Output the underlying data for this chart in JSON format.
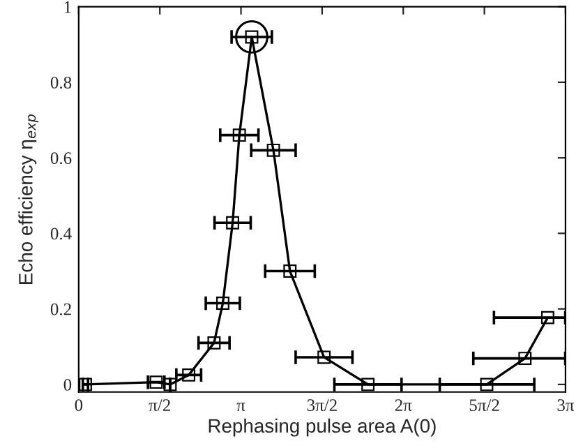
{
  "chart_data": {
    "type": "line",
    "xlabel": "Rephasing pulse area A(0)",
    "ylabel": "Echo efficiency η$_{exp}$",
    "xlim": [
      0,
      9.4248
    ],
    "ylim": [
      -0.02,
      1
    ],
    "xticks": [
      {
        "value": 0,
        "label": "0"
      },
      {
        "value": 1.5708,
        "label": "π/2"
      },
      {
        "value": 3.1416,
        "label": "π"
      },
      {
        "value": 4.7124,
        "label": "3π/2"
      },
      {
        "value": 6.2832,
        "label": "2π"
      },
      {
        "value": 7.854,
        "label": "5π/2"
      },
      {
        "value": 9.4248,
        "label": "3π"
      }
    ],
    "yticks": [
      0,
      0.2,
      0.4,
      0.6,
      0.8,
      1
    ],
    "grid": false,
    "legend": false,
    "series": [
      {
        "color": "#000000",
        "marker": "square",
        "line_style": "solid",
        "x": [
          0.13,
          1.5,
          1.77,
          2.13,
          2.62,
          2.79,
          2.98,
          3.11,
          3.35,
          3.77,
          4.09,
          4.75,
          5.6,
          7.9,
          8.64,
          9.08
        ],
        "values": [
          0,
          0.006,
          0,
          0.025,
          0.11,
          0.215,
          0.428,
          0.66,
          0.92,
          0.62,
          0.3,
          0.072,
          0,
          0,
          0.069,
          0.177
        ],
        "xerrors": [
          [
            0.08,
            0.18
          ],
          [
            1.34,
            1.66
          ],
          null,
          [
            1.89,
            2.37
          ],
          [
            2.32,
            2.92
          ],
          [
            2.46,
            3.12
          ],
          [
            2.63,
            3.33
          ],
          [
            2.74,
            3.48
          ],
          [
            2.96,
            3.74
          ],
          [
            3.34,
            4.2
          ],
          [
            3.61,
            4.57
          ],
          [
            4.2,
            5.3
          ],
          [
            4.95,
            6.25
          ],
          [
            6.99,
            8.82
          ],
          [
            7.64,
            9.42
          ],
          [
            8.04,
            9.42
          ]
        ]
      },
      {
        "type": "scatter",
        "color": "#000000",
        "marker": "circle",
        "x": [
          3.35
        ],
        "values": [
          0.92
        ]
      }
    ]
  }
}
